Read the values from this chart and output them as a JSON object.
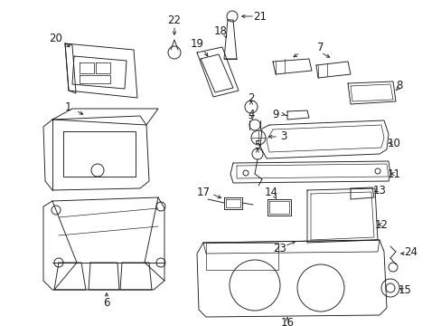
{
  "background_color": "#ffffff",
  "line_color": "#1a1a1a",
  "fig_width": 4.89,
  "fig_height": 3.6,
  "dpi": 100,
  "label_fontsize": 8.5,
  "lw": 0.65
}
